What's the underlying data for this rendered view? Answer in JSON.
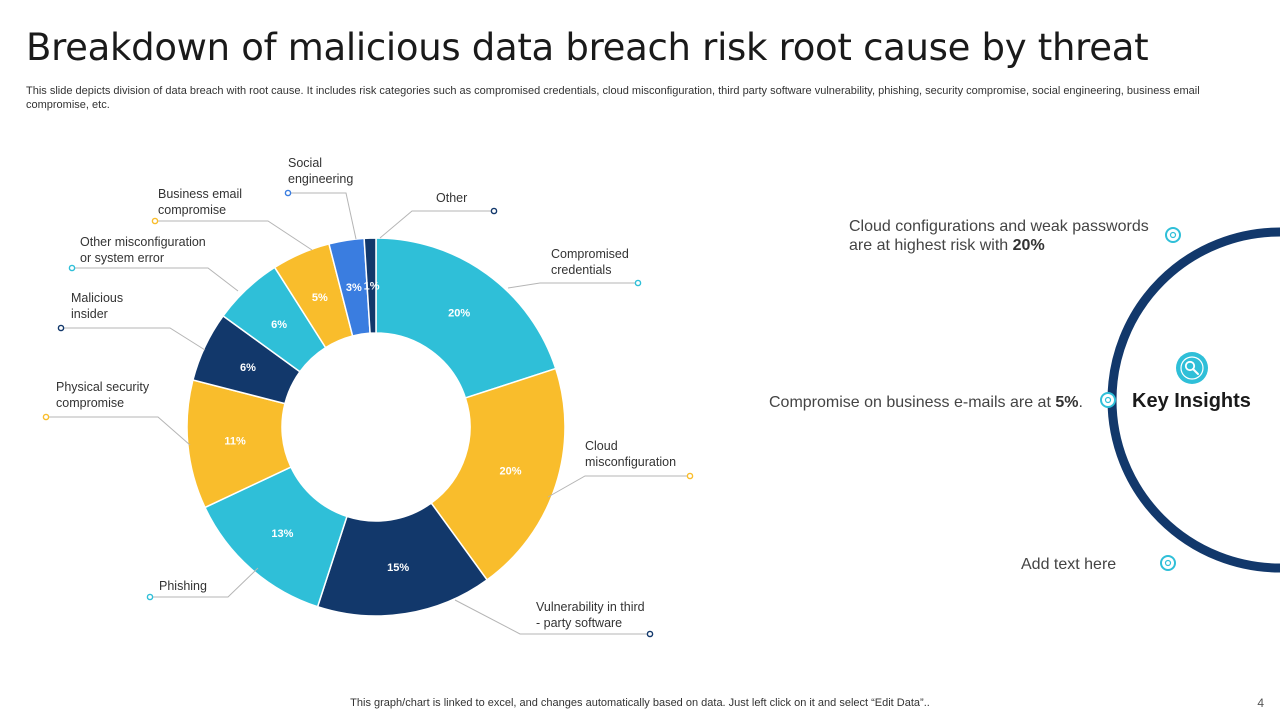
{
  "title": "Breakdown of malicious data breach risk root cause by threat",
  "subtitle": "This slide depicts division of data breach with root cause. It includes risk categories such as compromised credentials, cloud misconfiguration, third party software vulnerability, phishing, security compromise, social engineering, business email compromise, etc.",
  "chart_data": {
    "type": "pie",
    "donut": true,
    "slices": [
      {
        "label": "Compromised credentials",
        "value": 20,
        "display": "20%",
        "color": "#2fbfd8"
      },
      {
        "label": "Cloud misconfiguration",
        "value": 20,
        "display": "20%",
        "color": "#f9bd2c"
      },
      {
        "label": "Vulnerability in third - party software",
        "value": 15,
        "display": "15%",
        "color": "#12386b"
      },
      {
        "label": "Phishing",
        "value": 13,
        "display": "13%",
        "color": "#2fbfd8"
      },
      {
        "label": "Physical security compromise",
        "value": 11,
        "display": "11%",
        "color": "#f9bd2c"
      },
      {
        "label": "Malicious insider",
        "value": 6,
        "display": "6%",
        "color": "#12386b"
      },
      {
        "label": "Other misconfiguration or system error",
        "value": 6,
        "display": "6%",
        "color": "#2fbfd8"
      },
      {
        "label": "Business email compromise",
        "value": 5,
        "display": "5%",
        "color": "#f9bd2c"
      },
      {
        "label": "Social engineering",
        "value": 3,
        "display": "3%",
        "color": "#3a7de0"
      },
      {
        "label": "Other",
        "value": 1,
        "display": "1%",
        "color": "#12386b"
      }
    ]
  },
  "insights": {
    "heading": "Key Insights",
    "item1_text": "Cloud configurations and weak passwords are at highest risk with",
    "item1_value": "20%",
    "item2_text": "Compromise on business e-mails are at",
    "item2_value": "5%",
    "item2_suffix": ".",
    "item3_text": "Add text here",
    "accent": "#12386b",
    "icon_color": "#2fbfd8"
  },
  "footer": "This graph/chart is linked to excel,  and changes automatically based on data. Just left click on it and select “Edit Data”..",
  "page_number": "4"
}
